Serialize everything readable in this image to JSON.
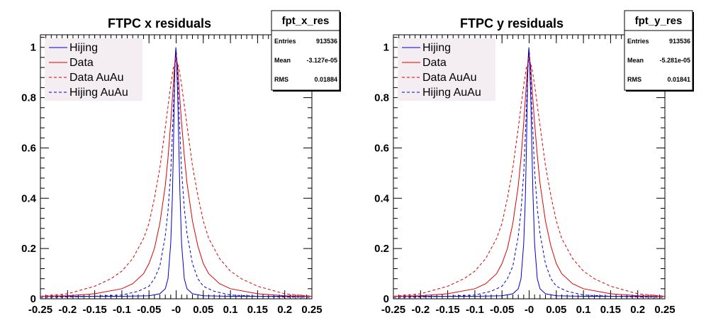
{
  "chart_data": [
    {
      "type": "line",
      "title": "FTPC x residuals",
      "xlim": [
        -0.25,
        0.25
      ],
      "ylim": [
        0,
        1.05
      ],
      "x_ticks": [
        "-0.25",
        "-0.2",
        "-0.15",
        "-0.1",
        "-0.05",
        "-0",
        "0.05",
        "0.1",
        "0.15",
        "0.2",
        "0.25"
      ],
      "y_ticks": [
        "0",
        "0.2",
        "0.4",
        "0.6",
        "0.8",
        "1"
      ],
      "legend_position": "top-left",
      "stats": {
        "name": "fpt_x_res",
        "rows": [
          {
            "label": "Entries",
            "value": "913536"
          },
          {
            "label": "Mean",
            "value": "-3.127e-05"
          },
          {
            "label": "RMS",
            "value": "0.01884"
          }
        ]
      },
      "series": [
        {
          "name": "Hijing",
          "color": "#0000cc",
          "dash": "solid",
          "x": [
            -0.25,
            -0.1,
            -0.05,
            -0.03,
            -0.02,
            -0.015,
            -0.01,
            -0.007,
            -0.005,
            -0.003,
            -0.002,
            -0.0005,
            0.001,
            0.003,
            0.005,
            0.007,
            0.01,
            0.015,
            0.02,
            0.03,
            0.05,
            0.1,
            0.25
          ],
          "y": [
            0.01,
            0.01,
            0.012,
            0.02,
            0.04,
            0.08,
            0.22,
            0.4,
            0.6,
            0.85,
            0.95,
            1.0,
            0.93,
            0.8,
            0.6,
            0.42,
            0.22,
            0.08,
            0.04,
            0.02,
            0.012,
            0.01,
            0.01
          ]
        },
        {
          "name": "Data",
          "color": "#dd0000",
          "dash": "solid",
          "x": [
            -0.25,
            -0.2,
            -0.15,
            -0.1,
            -0.08,
            -0.06,
            -0.05,
            -0.04,
            -0.03,
            -0.02,
            -0.015,
            -0.01,
            -0.005,
            -0.002,
            0.0,
            0.003,
            0.005,
            0.01,
            0.015,
            0.02,
            0.03,
            0.04,
            0.05,
            0.06,
            0.08,
            0.1,
            0.15,
            0.2,
            0.25
          ],
          "y": [
            0.01,
            0.012,
            0.02,
            0.04,
            0.06,
            0.1,
            0.14,
            0.2,
            0.3,
            0.45,
            0.56,
            0.7,
            0.86,
            0.95,
            0.97,
            0.92,
            0.85,
            0.7,
            0.57,
            0.46,
            0.31,
            0.21,
            0.14,
            0.1,
            0.06,
            0.04,
            0.02,
            0.012,
            0.01
          ]
        },
        {
          "name": "Data AuAu",
          "color": "#dd0000",
          "dash": "dashed",
          "x": [
            -0.25,
            -0.2,
            -0.15,
            -0.12,
            -0.1,
            -0.08,
            -0.06,
            -0.05,
            -0.04,
            -0.03,
            -0.02,
            -0.01,
            -0.005,
            0.0,
            0.005,
            0.01,
            0.02,
            0.03,
            0.04,
            0.05,
            0.06,
            0.08,
            0.1,
            0.12,
            0.15,
            0.2,
            0.25
          ],
          "y": [
            0.01,
            0.02,
            0.05,
            0.08,
            0.11,
            0.16,
            0.24,
            0.3,
            0.4,
            0.52,
            0.68,
            0.85,
            0.92,
            0.95,
            0.92,
            0.85,
            0.69,
            0.53,
            0.41,
            0.31,
            0.24,
            0.16,
            0.11,
            0.08,
            0.05,
            0.02,
            0.01
          ]
        },
        {
          "name": "Hijing AuAu",
          "color": "#0000cc",
          "dash": "dashed",
          "x": [
            -0.25,
            -0.15,
            -0.1,
            -0.07,
            -0.05,
            -0.04,
            -0.03,
            -0.02,
            -0.015,
            -0.01,
            -0.007,
            -0.004,
            -0.002,
            0.0,
            0.002,
            0.004,
            0.007,
            0.01,
            0.015,
            0.02,
            0.03,
            0.04,
            0.05,
            0.07,
            0.1,
            0.15,
            0.25
          ],
          "y": [
            0.005,
            0.01,
            0.015,
            0.03,
            0.05,
            0.08,
            0.13,
            0.25,
            0.35,
            0.5,
            0.65,
            0.82,
            0.93,
            0.99,
            0.93,
            0.82,
            0.66,
            0.51,
            0.36,
            0.26,
            0.14,
            0.08,
            0.05,
            0.03,
            0.015,
            0.01,
            0.005
          ]
        }
      ]
    },
    {
      "type": "line",
      "title": "FTPC y residuals",
      "xlim": [
        -0.25,
        0.25
      ],
      "ylim": [
        0,
        1.05
      ],
      "x_ticks": [
        "-0.25",
        "-0.2",
        "-0.15",
        "-0.1",
        "-0.05",
        "-0",
        "0.05",
        "0.1",
        "0.15",
        "0.2",
        "0.25"
      ],
      "y_ticks": [
        "0",
        "0.2",
        "0.4",
        "0.6",
        "0.8",
        "1"
      ],
      "legend_position": "top-left",
      "stats": {
        "name": "fpt_y_res",
        "rows": [
          {
            "label": "Entries",
            "value": "913536"
          },
          {
            "label": "Mean",
            "value": "-5.281e-05"
          },
          {
            "label": "RMS",
            "value": "0.01841"
          }
        ]
      },
      "series": [
        {
          "name": "Hijing",
          "color": "#0000cc",
          "dash": "solid",
          "x": [
            -0.25,
            -0.1,
            -0.05,
            -0.03,
            -0.02,
            -0.015,
            -0.01,
            -0.007,
            -0.005,
            -0.003,
            -0.002,
            -0.0005,
            0.001,
            0.003,
            0.005,
            0.007,
            0.01,
            0.015,
            0.02,
            0.03,
            0.05,
            0.1,
            0.25
          ],
          "y": [
            0.01,
            0.01,
            0.012,
            0.02,
            0.04,
            0.08,
            0.22,
            0.4,
            0.6,
            0.85,
            0.95,
            1.0,
            0.93,
            0.8,
            0.6,
            0.42,
            0.22,
            0.08,
            0.04,
            0.02,
            0.012,
            0.01,
            0.01
          ]
        },
        {
          "name": "Data",
          "color": "#dd0000",
          "dash": "solid",
          "x": [
            -0.25,
            -0.2,
            -0.15,
            -0.1,
            -0.08,
            -0.06,
            -0.05,
            -0.04,
            -0.03,
            -0.02,
            -0.015,
            -0.01,
            -0.005,
            -0.002,
            0.0,
            0.003,
            0.005,
            0.01,
            0.015,
            0.02,
            0.03,
            0.04,
            0.05,
            0.06,
            0.08,
            0.1,
            0.15,
            0.2,
            0.25
          ],
          "y": [
            0.01,
            0.012,
            0.02,
            0.04,
            0.06,
            0.1,
            0.14,
            0.2,
            0.3,
            0.45,
            0.56,
            0.7,
            0.86,
            0.95,
            0.97,
            0.92,
            0.85,
            0.7,
            0.57,
            0.46,
            0.31,
            0.21,
            0.14,
            0.1,
            0.06,
            0.04,
            0.02,
            0.012,
            0.01
          ]
        },
        {
          "name": "Data AuAu",
          "color": "#dd0000",
          "dash": "dashed",
          "x": [
            -0.25,
            -0.2,
            -0.15,
            -0.12,
            -0.1,
            -0.08,
            -0.06,
            -0.05,
            -0.04,
            -0.03,
            -0.02,
            -0.01,
            -0.005,
            0.0,
            0.005,
            0.01,
            0.02,
            0.03,
            0.04,
            0.05,
            0.06,
            0.08,
            0.1,
            0.12,
            0.15,
            0.2,
            0.25
          ],
          "y": [
            0.01,
            0.02,
            0.05,
            0.08,
            0.11,
            0.16,
            0.24,
            0.3,
            0.4,
            0.52,
            0.68,
            0.85,
            0.92,
            0.95,
            0.92,
            0.85,
            0.69,
            0.53,
            0.41,
            0.31,
            0.24,
            0.16,
            0.11,
            0.08,
            0.05,
            0.02,
            0.01
          ]
        },
        {
          "name": "Hijing AuAu",
          "color": "#0000cc",
          "dash": "dashed",
          "x": [
            -0.25,
            -0.15,
            -0.1,
            -0.07,
            -0.05,
            -0.04,
            -0.03,
            -0.02,
            -0.015,
            -0.01,
            -0.007,
            -0.004,
            -0.002,
            0.0,
            0.002,
            0.004,
            0.007,
            0.01,
            0.015,
            0.02,
            0.03,
            0.04,
            0.05,
            0.07,
            0.1,
            0.15,
            0.25
          ],
          "y": [
            0.005,
            0.01,
            0.015,
            0.03,
            0.05,
            0.08,
            0.13,
            0.25,
            0.35,
            0.5,
            0.65,
            0.82,
            0.93,
            0.99,
            0.93,
            0.82,
            0.66,
            0.51,
            0.36,
            0.26,
            0.14,
            0.08,
            0.05,
            0.03,
            0.015,
            0.01,
            0.005
          ]
        }
      ]
    }
  ]
}
